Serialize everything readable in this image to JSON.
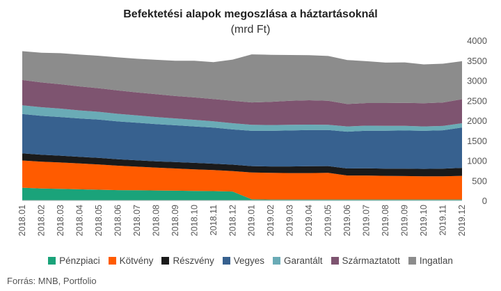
{
  "chart_data": {
    "type": "area",
    "stacked": true,
    "title": "Befektetési alapok megoszlása a háztartásoknál",
    "subtitle": "(mrd Ft)",
    "source": "Forrás: MNB, Portfolio",
    "ylim": [
      0,
      4000
    ],
    "y_ticks": [
      0,
      500,
      1000,
      1500,
      2000,
      2500,
      3000,
      3500,
      4000
    ],
    "y_axis_position": "right",
    "grid": false,
    "legend_position": "bottom",
    "categories": [
      "2018.01",
      "2018.02",
      "2018.03",
      "2018.04",
      "2018.05",
      "2018.06",
      "2018.07",
      "2018.08",
      "2018.09",
      "2018.10",
      "2018.11",
      "2018.12",
      "2019.01",
      "2019.02",
      "2019.03",
      "2019.04",
      "2019.05",
      "2019.06",
      "2019.07",
      "2019.08",
      "2019.09",
      "2019.10",
      "2019.11",
      "2019.12"
    ],
    "series": [
      {
        "name": "Pénzpiaci",
        "color": "#1aa37a",
        "values": [
          320,
          300,
          290,
          280,
          270,
          260,
          255,
          250,
          245,
          240,
          235,
          225,
          30,
          25,
          25,
          25,
          25,
          25,
          25,
          25,
          25,
          25,
          25,
          25
        ]
      },
      {
        "name": "Kötvény",
        "color": "#ff5b00",
        "values": [
          680,
          670,
          660,
          645,
          630,
          610,
          590,
          570,
          555,
          540,
          525,
          510,
          670,
          665,
          660,
          660,
          665,
          600,
          600,
          590,
          585,
          580,
          580,
          590
        ]
      },
      {
        "name": "Részvény",
        "color": "#1a1a1a",
        "values": [
          180,
          175,
          170,
          165,
          165,
          160,
          160,
          160,
          160,
          160,
          160,
          160,
          160,
          160,
          165,
          170,
          170,
          175,
          180,
          180,
          185,
          185,
          190,
          200
        ]
      },
      {
        "name": "Vegyes",
        "color": "#37618f",
        "values": [
          980,
          970,
          965,
          960,
          955,
          945,
          940,
          930,
          920,
          910,
          900,
          880,
          880,
          890,
          900,
          905,
          900,
          920,
          940,
          950,
          955,
          950,
          960,
          1010
        ]
      },
      {
        "name": "Garantált",
        "color": "#6aabb6",
        "values": [
          220,
          215,
          210,
          200,
          195,
          190,
          180,
          175,
          170,
          165,
          160,
          155,
          150,
          145,
          140,
          135,
          130,
          130,
          125,
          120,
          115,
          110,
          108,
          105
        ]
      },
      {
        "name": "Származtatott",
        "color": "#7e5470",
        "values": [
          630,
          620,
          610,
          600,
          590,
          585,
          575,
          570,
          560,
          560,
          555,
          560,
          560,
          580,
          600,
          610,
          600,
          560,
          565,
          570,
          575,
          580,
          585,
          600
        ]
      },
      {
        "name": "Ingatlan",
        "color": "#8c8c8c",
        "values": [
          720,
          740,
          775,
          795,
          810,
          825,
          840,
          860,
          880,
          915,
          920,
          1030,
          1200,
          1175,
          1145,
          1125,
          1120,
          1100,
          1045,
          1010,
          1010,
          970,
          970,
          950
        ]
      }
    ]
  }
}
